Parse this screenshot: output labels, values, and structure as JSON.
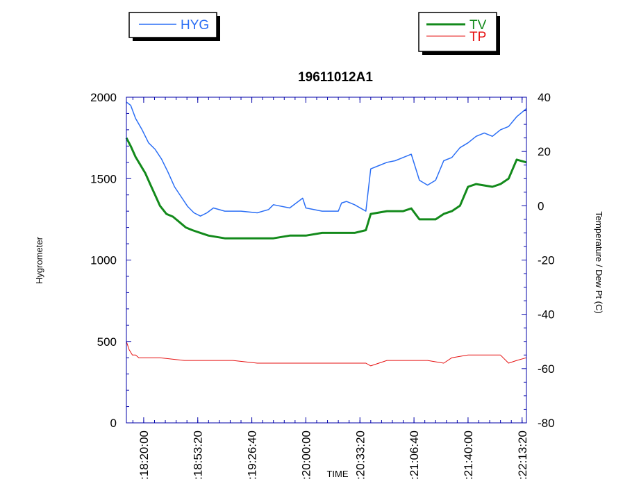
{
  "chart_data": {
    "type": "line",
    "title": "19611012A1",
    "xlabel": "TIME",
    "ylabel_left": "Hygrometer",
    "ylabel_right": "Temperature / Dew Pt (C)",
    "x_range": [
      "18:09:20",
      "22:16:00"
    ],
    "x_ticks": [
      ":18:20:00",
      ":18:53:20",
      ":19:26:40",
      ":20:00:00",
      ":20:33:20",
      ":21:06:40",
      ":21:40:00",
      ":22:13:20"
    ],
    "ylim_left": [
      0,
      2000
    ],
    "y_ticks_left": [
      "0",
      "500",
      "1000",
      "1500",
      "2000"
    ],
    "ylim_right": [
      -80,
      40
    ],
    "y_ticks_right": [
      "-80",
      "-60",
      "-40",
      "-20",
      "0",
      "20",
      "40"
    ],
    "legend_left": [
      "HYG"
    ],
    "legend_right": [
      "TV",
      "TP"
    ],
    "colors": {
      "HYG": "#2a6ef5",
      "TV": "#138a1b",
      "TP": "#e61010",
      "axis": "#0000aa"
    },
    "series": [
      {
        "name": "HYG",
        "axis": "left",
        "x": [
          "18:09:20",
          "18:12:00",
          "18:15:00",
          "18:19:00",
          "18:23:00",
          "18:27:00",
          "18:31:00",
          "18:35:00",
          "18:39:00",
          "18:43:00",
          "18:47:00",
          "18:51:00",
          "18:55:00",
          "18:59:00",
          "19:03:00",
          "19:10:00",
          "19:20:00",
          "19:30:00",
          "19:37:00",
          "19:40:00",
          "19:50:00",
          "19:58:00",
          "20:00:00",
          "20:10:00",
          "20:20:00",
          "20:22:00",
          "20:25:00",
          "20:30:00",
          "20:37:00",
          "20:40:00",
          "20:45:00",
          "20:50:00",
          "20:55:00",
          "21:00:00",
          "21:05:00",
          "21:10:00",
          "21:15:00",
          "21:20:00",
          "21:25:00",
          "21:30:00",
          "21:35:00",
          "21:40:00",
          "21:45:00",
          "21:50:00",
          "21:55:00",
          "22:00:00",
          "22:05:00",
          "22:10:00",
          "22:16:00"
        ],
        "y": [
          1970,
          1950,
          1870,
          1800,
          1720,
          1680,
          1620,
          1540,
          1450,
          1390,
          1330,
          1290,
          1270,
          1290,
          1320,
          1300,
          1300,
          1290,
          1310,
          1340,
          1320,
          1380,
          1320,
          1300,
          1300,
          1350,
          1360,
          1340,
          1300,
          1560,
          1580,
          1600,
          1610,
          1630,
          1650,
          1490,
          1460,
          1490,
          1610,
          1630,
          1690,
          1720,
          1760,
          1780,
          1760,
          1800,
          1820,
          1880,
          1930
        ]
      },
      {
        "name": "TV",
        "axis": "right",
        "x": [
          "18:09:20",
          "18:12:00",
          "18:15:00",
          "18:18:00",
          "18:21:00",
          "18:24:00",
          "18:27:00",
          "18:30:00",
          "18:34:00",
          "18:38:00",
          "18:42:00",
          "18:46:00",
          "18:50:00",
          "18:55:00",
          "19:00:00",
          "19:10:00",
          "19:20:00",
          "19:30:00",
          "19:40:00",
          "19:50:00",
          "20:00:00",
          "20:10:00",
          "20:20:00",
          "20:30:00",
          "20:37:00",
          "20:40:00",
          "20:50:00",
          "20:55:00",
          "21:00:00",
          "21:05:00",
          "21:10:00",
          "21:20:00",
          "21:25:00",
          "21:30:00",
          "21:35:00",
          "21:40:00",
          "21:45:00",
          "21:55:00",
          "22:00:00",
          "22:05:00",
          "22:10:00",
          "22:16:00"
        ],
        "y": [
          25,
          22,
          18,
          15,
          12,
          8,
          4,
          0,
          -3,
          -4,
          -6,
          -8,
          -9,
          -10,
          -11,
          -12,
          -12,
          -12,
          -12,
          -11,
          -11,
          -10,
          -10,
          -10,
          -9,
          -3,
          -2,
          -2,
          -2,
          -1,
          -5,
          -5,
          -3,
          -2,
          0,
          7,
          8,
          7,
          8,
          10,
          17,
          16
        ]
      },
      {
        "name": "TP",
        "axis": "right",
        "x": [
          "18:09:20",
          "18:11:00",
          "18:13:00",
          "18:15:00",
          "18:17:00",
          "18:20:00",
          "18:30:00",
          "18:45:00",
          "19:00:00",
          "19:15:00",
          "19:30:00",
          "19:45:00",
          "20:00:00",
          "20:15:00",
          "20:30:00",
          "20:37:00",
          "20:40:00",
          "20:50:00",
          "21:00:00",
          "21:15:00",
          "21:25:00",
          "21:30:00",
          "21:40:00",
          "21:55:00",
          "22:00:00",
          "22:05:00",
          "22:10:00",
          "22:16:00"
        ],
        "y": [
          -50,
          -53,
          -55,
          -55,
          -56,
          -56,
          -56,
          -57,
          -57,
          -57,
          -58,
          -58,
          -58,
          -58,
          -58,
          -58,
          -59,
          -57,
          -57,
          -57,
          -58,
          -56,
          -55,
          -55,
          -55,
          -58,
          -57,
          -56
        ]
      }
    ]
  }
}
